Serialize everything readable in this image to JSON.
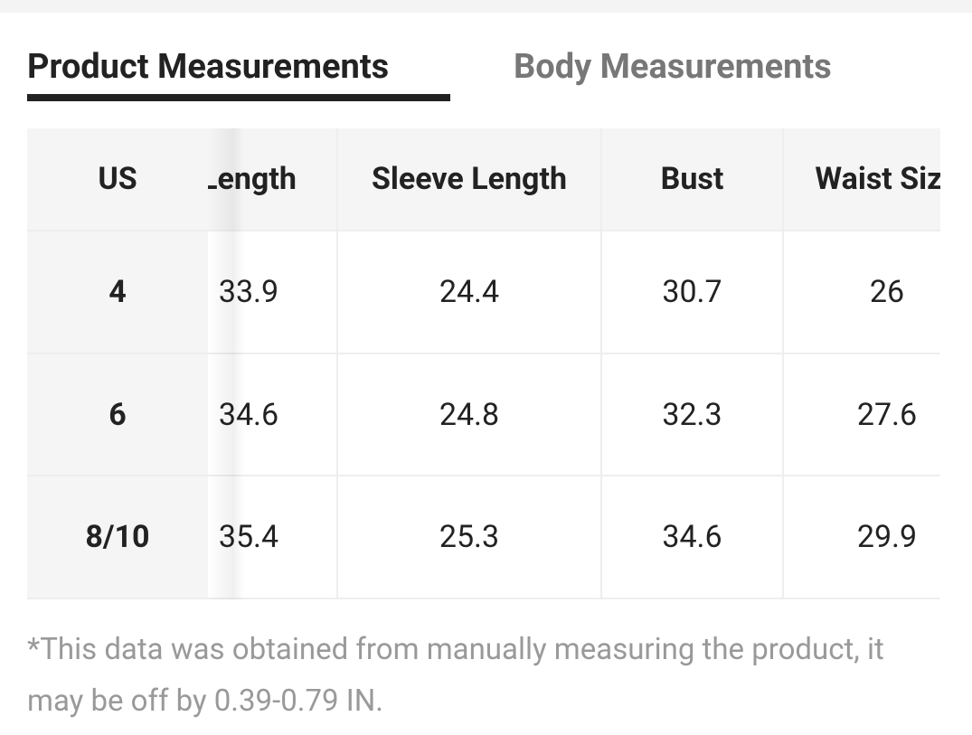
{
  "tabs": [
    "Product Measurements",
    "Body Measurements"
  ],
  "table": {
    "header": [
      "US",
      "Length",
      "Sleeve Length",
      "Bust",
      "Waist Size"
    ],
    "rows": [
      [
        "4",
        "33.9",
        "24.4",
        "30.7",
        "26"
      ],
      [
        "6",
        "34.6",
        "24.8",
        "32.3",
        "27.6"
      ],
      [
        "8/10",
        "35.4",
        "25.3",
        "34.6",
        "29.9"
      ]
    ]
  },
  "note": "*This data was obtained from manually measuring the product, it may be off by 0.39-0.79 IN."
}
